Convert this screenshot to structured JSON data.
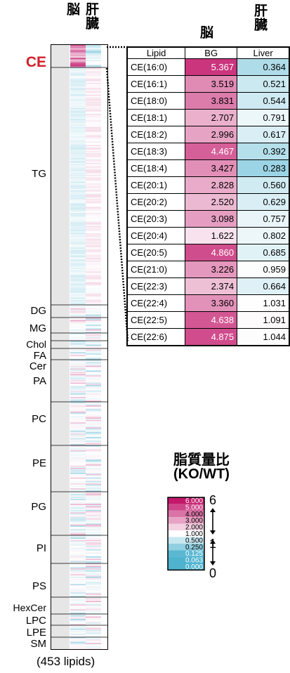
{
  "chart_data": {
    "type": "heatmap",
    "column_headers": [
      "脳",
      "肝臓"
    ],
    "lipid_classes": [
      "CE",
      "TG",
      "DG",
      "MG",
      "Chol",
      "FA",
      "Cer",
      "PA",
      "PC",
      "PE",
      "PG",
      "PI",
      "PS",
      "HexCer",
      "LPC",
      "LPE",
      "SM"
    ],
    "lipid_count_label": "(453 lipids)",
    "zoom_table": {
      "headers": [
        "Lipid",
        "BG",
        "Liver"
      ],
      "rows": [
        {
          "lipid": "CE(16:0)",
          "bg": 5.367,
          "liver": 0.364
        },
        {
          "lipid": "CE(16:1)",
          "bg": 3.519,
          "liver": 0.521
        },
        {
          "lipid": "CE(18:0)",
          "bg": 3.831,
          "liver": 0.544
        },
        {
          "lipid": "CE(18:1)",
          "bg": 2.707,
          "liver": 0.791
        },
        {
          "lipid": "CE(18:2)",
          "bg": 2.996,
          "liver": 0.617
        },
        {
          "lipid": "CE(18:3)",
          "bg": 4.467,
          "liver": 0.392
        },
        {
          "lipid": "CE(18:4)",
          "bg": 3.427,
          "liver": 0.283
        },
        {
          "lipid": "CE(20:1)",
          "bg": 2.828,
          "liver": 0.56
        },
        {
          "lipid": "CE(20:2)",
          "bg": 2.52,
          "liver": 0.629
        },
        {
          "lipid": "CE(20:3)",
          "bg": 3.098,
          "liver": 0.757
        },
        {
          "lipid": "CE(20:4)",
          "bg": 1.622,
          "liver": 0.802
        },
        {
          "lipid": "CE(20:5)",
          "bg": 4.86,
          "liver": 0.685
        },
        {
          "lipid": "CE(21:0)",
          "bg": 3.226,
          "liver": 0.959
        },
        {
          "lipid": "CE(22:3)",
          "bg": 2.374,
          "liver": 0.664
        },
        {
          "lipid": "CE(22:4)",
          "bg": 3.36,
          "liver": 1.031
        },
        {
          "lipid": "CE(22:5)",
          "bg": 4.638,
          "liver": 1.091
        },
        {
          "lipid": "CE(22:6)",
          "bg": 4.875,
          "liver": 1.044
        }
      ]
    },
    "legend": {
      "title_line1": "脂質量比",
      "title_line2": "(KO/WT)",
      "scale_values": [
        "6.000",
        "5.000",
        "4.000",
        "3.000",
        "2.000",
        "1.000",
        "0.500",
        "0.250",
        "0.125",
        "0.063",
        "0.000"
      ],
      "side_labels": [
        "6",
        "1",
        "0"
      ]
    },
    "colors": {
      "high": "#c2186b",
      "mid": "#ffffff",
      "low": "#4fb3cf",
      "ce_label": "#d11f2b"
    }
  }
}
